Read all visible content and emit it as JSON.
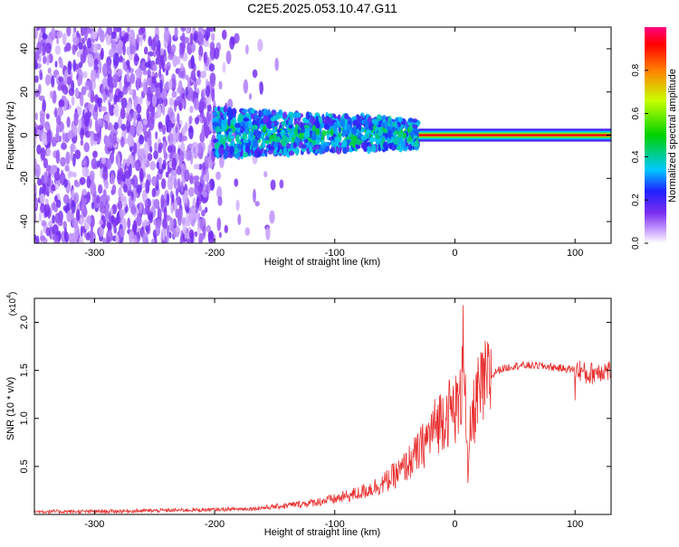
{
  "title": "C2E5.2025.053.10.47.G11",
  "chart_data": [
    {
      "type": "heatmap",
      "xlabel": "Height of straight line (km)",
      "ylabel": "Frequency (Hz)",
      "xlim": [
        -350,
        130
      ],
      "ylim": [
        -50,
        50
      ],
      "x_ticks": [
        -300,
        -200,
        -100,
        0,
        100
      ],
      "y_ticks": [
        -40,
        -20,
        0,
        20,
        40
      ],
      "colorbar": {
        "label": "Normalized spectral amplitude",
        "range": [
          0,
          1
        ],
        "ticks": [
          "0.0",
          "0.2",
          "0.4",
          "0.6",
          "0.8"
        ],
        "colors": [
          "#ffffff",
          "#c8a0ff",
          "#7b2ff0",
          "#2020ff",
          "#00c8ff",
          "#00d200",
          "#c8ff00",
          "#ff8000",
          "#ff0000",
          "#ff0080"
        ]
      },
      "regions": [
        {
          "x_range": [
            -350,
            -200
          ],
          "freq_range": [
            -50,
            50
          ],
          "amplitude": 0.1,
          "pattern": "broadband noise"
        },
        {
          "x_range": [
            -200,
            -30
          ],
          "freq_range": [
            -10,
            12
          ],
          "amplitude": 0.3,
          "pattern": "noisy band"
        },
        {
          "x_range": [
            -30,
            130
          ],
          "freq_range": [
            -1,
            1
          ],
          "amplitude": 0.95,
          "pattern": "narrow carrier line"
        }
      ]
    },
    {
      "type": "line",
      "xlabel": "Height of straight line (km)",
      "ylabel": "SNR (10 * v/v)",
      "y_multiplier": "(x10",
      "y_exponent": "4",
      "y_multiplier_close": ")",
      "xlim": [
        -350,
        130
      ],
      "ylim": [
        0,
        2.25
      ],
      "x_ticks": [
        -300,
        -200,
        -100,
        0,
        100
      ],
      "y_ticks": [
        "0.5",
        "1.0",
        "1.5",
        "2.0"
      ],
      "series": [
        {
          "color": "#e83030",
          "points": [
            [
              -350,
              0.03
            ],
            [
              -300,
              0.03
            ],
            [
              -250,
              0.04
            ],
            [
              -200,
              0.05
            ],
            [
              -170,
              0.06
            ],
            [
              -150,
              0.08
            ],
            [
              -120,
              0.12
            ],
            [
              -100,
              0.16
            ],
            [
              -80,
              0.22
            ],
            [
              -60,
              0.32
            ],
            [
              -45,
              0.45
            ],
            [
              -30,
              0.65
            ],
            [
              -20,
              0.85
            ],
            [
              -12,
              1.0
            ],
            [
              -8,
              1.05
            ],
            [
              0,
              1.1
            ],
            [
              5,
              1.15
            ],
            [
              7,
              2.2
            ],
            [
              9,
              1.05
            ],
            [
              11,
              0.3
            ],
            [
              13,
              0.9
            ],
            [
              18,
              1.2
            ],
            [
              25,
              1.35
            ],
            [
              35,
              1.5
            ],
            [
              50,
              1.55
            ],
            [
              70,
              1.55
            ],
            [
              90,
              1.52
            ],
            [
              105,
              1.5
            ],
            [
              110,
              1.45
            ],
            [
              120,
              1.5
            ],
            [
              130,
              1.5
            ]
          ]
        }
      ]
    }
  ]
}
